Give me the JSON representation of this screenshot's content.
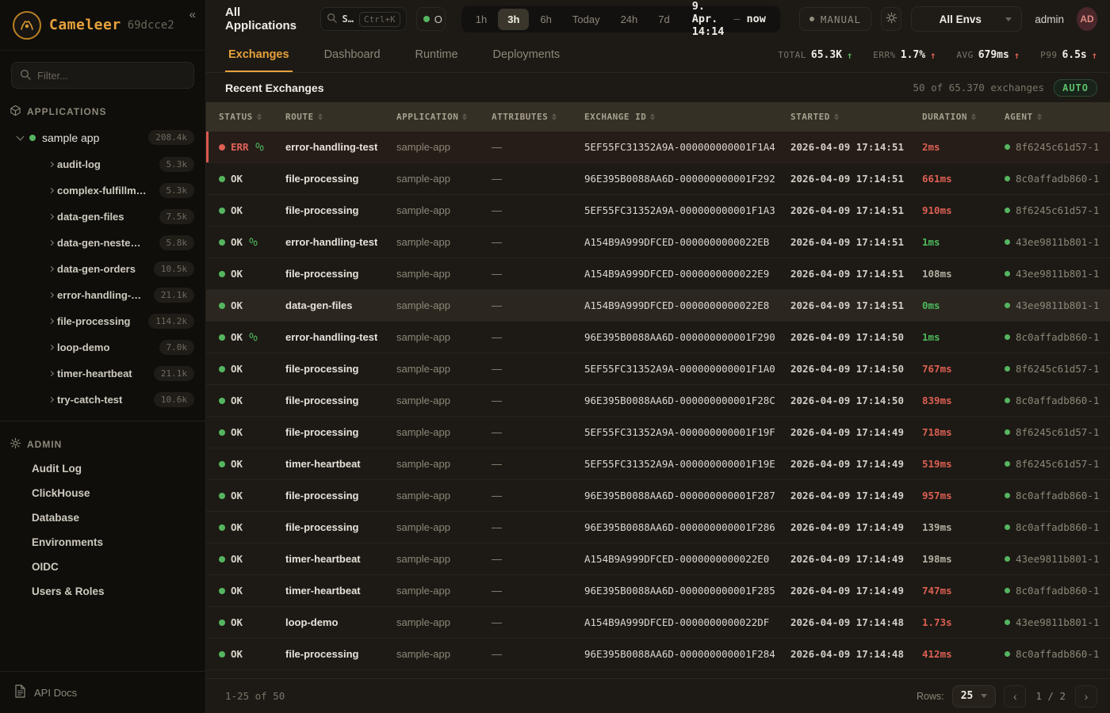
{
  "colors": {
    "accent": "#e7a13c",
    "green": "#55b55f",
    "red": "#dd5f53",
    "sidebar_bg": "#0f0e0b",
    "main_bg": "#1d1a15"
  },
  "sidebar": {
    "brand": "Cameleer",
    "version": "69dcce2",
    "collapse_glyph": "«",
    "filter_placeholder": "Filter...",
    "applications_header": "APPLICATIONS",
    "app_root": {
      "name": "sample app",
      "count": "208.4k"
    },
    "routes": [
      {
        "label": "audit-log",
        "count": "5.3k"
      },
      {
        "label": "complex-fulfillm…",
        "count": "5.3k"
      },
      {
        "label": "data-gen-files",
        "count": "7.5k"
      },
      {
        "label": "data-gen-neste…",
        "count": "5.8k"
      },
      {
        "label": "data-gen-orders",
        "count": "10.5k"
      },
      {
        "label": "error-handling-…",
        "count": "21.1k"
      },
      {
        "label": "file-processing",
        "count": "114.2k"
      },
      {
        "label": "loop-demo",
        "count": "7.0k"
      },
      {
        "label": "timer-heartbeat",
        "count": "21.1k"
      },
      {
        "label": "try-catch-test",
        "count": "10.6k"
      }
    ],
    "admin_header": "ADMIN",
    "admin_items": [
      "Audit Log",
      "ClickHouse",
      "Database",
      "Environments",
      "OIDC",
      "Users & Roles"
    ],
    "api_docs_label": "API Docs"
  },
  "topbar": {
    "title": "All Applications",
    "search": {
      "placeholder": "S…",
      "shortcut": "Ctrl+K"
    },
    "online_label": "O",
    "time_ranges": [
      "1h",
      "3h",
      "6h",
      "Today",
      "24h",
      "7d"
    ],
    "active_range": "3h",
    "time_from": "9. Apr. 14:14",
    "time_sep": "–",
    "time_to": "now",
    "manual_label": "MANUAL",
    "env_value": "All Envs",
    "user_name": "admin",
    "user_initials": "AD"
  },
  "tabs": {
    "items": [
      "Exchanges",
      "Dashboard",
      "Runtime",
      "Deployments"
    ],
    "active": "Exchanges"
  },
  "stats": [
    {
      "label": "TOTAL",
      "value": "65.3K",
      "trend": "up",
      "trend_color": "green"
    },
    {
      "label": "ERR%",
      "value": "1.7%",
      "trend": "up",
      "trend_color": "red"
    },
    {
      "label": "AVG",
      "value": "679ms",
      "trend": "up",
      "trend_color": "red"
    },
    {
      "label": "P99",
      "value": "6.5s",
      "trend": "up",
      "trend_color": "red"
    }
  ],
  "table": {
    "section_title": "Recent Exchanges",
    "summary": "50 of 65.370 exchanges",
    "auto_badge": "AUTO",
    "columns": [
      "STATUS",
      "ROUTE",
      "APPLICATION",
      "ATTRIBUTES",
      "EXCHANGE ID",
      "STARTED",
      "DURATION",
      "AGENT"
    ],
    "rows": [
      {
        "status": "ERR",
        "trace": true,
        "route": "error-handling-test",
        "application": "sample-app",
        "attributes": "—",
        "exchange_id": "5EF55FC31352A9A-000000000001F1A4",
        "started": "2026-04-09 17:14:51",
        "duration": "2ms",
        "duration_color": "red",
        "agent": "8f6245c61d57-1",
        "error": true,
        "highlight": false
      },
      {
        "status": "OK",
        "trace": false,
        "route": "file-processing",
        "application": "sample-app",
        "attributes": "—",
        "exchange_id": "96E395B0088AA6D-000000000001F292",
        "started": "2026-04-09 17:14:51",
        "duration": "661ms",
        "duration_color": "red",
        "agent": "8c0affadb860-1",
        "error": false,
        "highlight": false
      },
      {
        "status": "OK",
        "trace": false,
        "route": "file-processing",
        "application": "sample-app",
        "attributes": "—",
        "exchange_id": "5EF55FC31352A9A-000000000001F1A3",
        "started": "2026-04-09 17:14:51",
        "duration": "910ms",
        "duration_color": "red",
        "agent": "8f6245c61d57-1",
        "error": false,
        "highlight": false
      },
      {
        "status": "OK",
        "trace": true,
        "route": "error-handling-test",
        "application": "sample-app",
        "attributes": "—",
        "exchange_id": "A154B9A999DFCED-0000000000022EB",
        "started": "2026-04-09 17:14:51",
        "duration": "1ms",
        "duration_color": "green",
        "agent": "43ee9811b801-1",
        "error": false,
        "highlight": false
      },
      {
        "status": "OK",
        "trace": false,
        "route": "file-processing",
        "application": "sample-app",
        "attributes": "—",
        "exchange_id": "A154B9A999DFCED-0000000000022E9",
        "started": "2026-04-09 17:14:51",
        "duration": "108ms",
        "duration_color": "default",
        "agent": "43ee9811b801-1",
        "error": false,
        "highlight": false
      },
      {
        "status": "OK",
        "trace": false,
        "route": "data-gen-files",
        "application": "sample-app",
        "attributes": "—",
        "exchange_id": "A154B9A999DFCED-0000000000022E8",
        "started": "2026-04-09 17:14:51",
        "duration": "0ms",
        "duration_color": "green",
        "agent": "43ee9811b801-1",
        "error": false,
        "highlight": true
      },
      {
        "status": "OK",
        "trace": true,
        "route": "error-handling-test",
        "application": "sample-app",
        "attributes": "—",
        "exchange_id": "96E395B0088AA6D-000000000001F290",
        "started": "2026-04-09 17:14:50",
        "duration": "1ms",
        "duration_color": "green",
        "agent": "8c0affadb860-1",
        "error": false,
        "highlight": false
      },
      {
        "status": "OK",
        "trace": false,
        "route": "file-processing",
        "application": "sample-app",
        "attributes": "—",
        "exchange_id": "5EF55FC31352A9A-000000000001F1A0",
        "started": "2026-04-09 17:14:50",
        "duration": "767ms",
        "duration_color": "red",
        "agent": "8f6245c61d57-1",
        "error": false,
        "highlight": false
      },
      {
        "status": "OK",
        "trace": false,
        "route": "file-processing",
        "application": "sample-app",
        "attributes": "—",
        "exchange_id": "96E395B0088AA6D-000000000001F28C",
        "started": "2026-04-09 17:14:50",
        "duration": "839ms",
        "duration_color": "red",
        "agent": "8c0affadb860-1",
        "error": false,
        "highlight": false
      },
      {
        "status": "OK",
        "trace": false,
        "route": "file-processing",
        "application": "sample-app",
        "attributes": "—",
        "exchange_id": "5EF55FC31352A9A-000000000001F19F",
        "started": "2026-04-09 17:14:49",
        "duration": "718ms",
        "duration_color": "red",
        "agent": "8f6245c61d57-1",
        "error": false,
        "highlight": false
      },
      {
        "status": "OK",
        "trace": false,
        "route": "timer-heartbeat",
        "application": "sample-app",
        "attributes": "—",
        "exchange_id": "5EF55FC31352A9A-000000000001F19E",
        "started": "2026-04-09 17:14:49",
        "duration": "519ms",
        "duration_color": "red",
        "agent": "8f6245c61d57-1",
        "error": false,
        "highlight": false
      },
      {
        "status": "OK",
        "trace": false,
        "route": "file-processing",
        "application": "sample-app",
        "attributes": "—",
        "exchange_id": "96E395B0088AA6D-000000000001F287",
        "started": "2026-04-09 17:14:49",
        "duration": "957ms",
        "duration_color": "red",
        "agent": "8c0affadb860-1",
        "error": false,
        "highlight": false
      },
      {
        "status": "OK",
        "trace": false,
        "route": "file-processing",
        "application": "sample-app",
        "attributes": "—",
        "exchange_id": "96E395B0088AA6D-000000000001F286",
        "started": "2026-04-09 17:14:49",
        "duration": "139ms",
        "duration_color": "default",
        "agent": "8c0affadb860-1",
        "error": false,
        "highlight": false
      },
      {
        "status": "OK",
        "trace": false,
        "route": "timer-heartbeat",
        "application": "sample-app",
        "attributes": "—",
        "exchange_id": "A154B9A999DFCED-0000000000022E0",
        "started": "2026-04-09 17:14:49",
        "duration": "198ms",
        "duration_color": "default",
        "agent": "43ee9811b801-1",
        "error": false,
        "highlight": false
      },
      {
        "status": "OK",
        "trace": false,
        "route": "timer-heartbeat",
        "application": "sample-app",
        "attributes": "—",
        "exchange_id": "96E395B0088AA6D-000000000001F285",
        "started": "2026-04-09 17:14:49",
        "duration": "747ms",
        "duration_color": "red",
        "agent": "8c0affadb860-1",
        "error": false,
        "highlight": false
      },
      {
        "status": "OK",
        "trace": false,
        "route": "loop-demo",
        "application": "sample-app",
        "attributes": "—",
        "exchange_id": "A154B9A999DFCED-0000000000022DF",
        "started": "2026-04-09 17:14:48",
        "duration": "1.73s",
        "duration_color": "red",
        "agent": "43ee9811b801-1",
        "error": false,
        "highlight": false
      },
      {
        "status": "OK",
        "trace": false,
        "route": "file-processing",
        "application": "sample-app",
        "attributes": "—",
        "exchange_id": "96E395B0088AA6D-000000000001F284",
        "started": "2026-04-09 17:14:48",
        "duration": "412ms",
        "duration_color": "red",
        "agent": "8c0affadb860-1",
        "error": false,
        "highlight": false
      }
    ]
  },
  "footer": {
    "range": "1-25 of 50",
    "rows_label": "Rows:",
    "rows_value": "25",
    "prev_glyph": "‹",
    "page_indicator": "1 / 2",
    "next_glyph": "›"
  }
}
